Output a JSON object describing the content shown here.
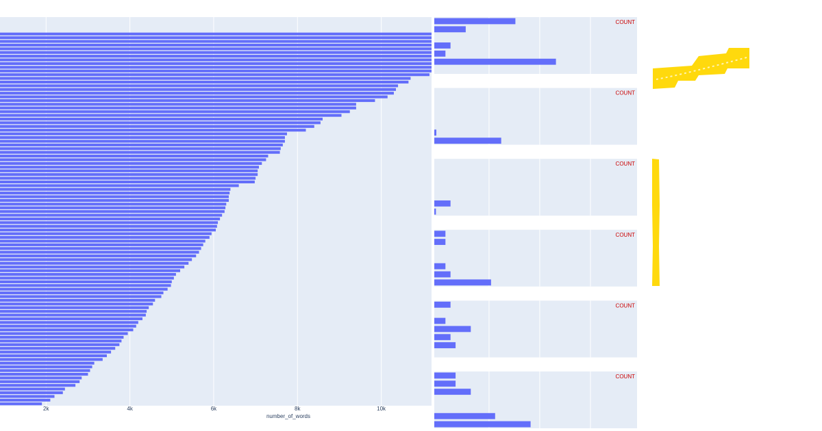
{
  "colors": {
    "plot_bg": "#e5ecf6",
    "bar": "#636efa",
    "grid": "#ffffff",
    "count_label": "#cc0000",
    "highlighter": "#ffd700"
  },
  "chart_data": [
    {
      "type": "bar",
      "orientation": "horizontal",
      "xlabel": "number_of_words",
      "xlim": [
        900,
        11200
      ],
      "xticks": [
        2000,
        4000,
        6000,
        8000,
        10000
      ],
      "xtick_labels": [
        "2k",
        "4k",
        "6k",
        "8k",
        "10k"
      ],
      "values": [
        11200,
        11200,
        11200,
        11200,
        11200,
        11200,
        11200,
        11200,
        11200,
        11200,
        11200,
        11150,
        10700,
        10650,
        10400,
        10350,
        10300,
        10150,
        9850,
        9400,
        9400,
        9250,
        9050,
        8600,
        8550,
        8400,
        8200,
        7750,
        7700,
        7700,
        7650,
        7600,
        7580,
        7300,
        7250,
        7150,
        7080,
        7050,
        7050,
        7000,
        6980,
        6600,
        6400,
        6380,
        6360,
        6360,
        6300,
        6280,
        6260,
        6200,
        6150,
        6100,
        6080,
        6050,
        5950,
        5900,
        5800,
        5750,
        5700,
        5650,
        5580,
        5480,
        5400,
        5300,
        5200,
        5100,
        5050,
        5000,
        4980,
        4900,
        4800,
        4750,
        4600,
        4550,
        4450,
        4400,
        4380,
        4300,
        4200,
        4150,
        4080,
        3950,
        3850,
        3800,
        3750,
        3650,
        3550,
        3450,
        3350,
        3150,
        3100,
        3050,
        3000,
        2850,
        2800,
        2700,
        2450,
        2400,
        2200,
        2100,
        1900
      ]
    },
    {
      "type": "bar",
      "orientation": "horizontal",
      "label": "COUNT",
      "xlim": [
        0,
        1
      ],
      "slots": 7,
      "bars": [
        {
          "slot": 0,
          "value": 0.4
        },
        {
          "slot": 1,
          "value": 0.155
        },
        {
          "slot": 3,
          "value": 0.08
        },
        {
          "slot": 4,
          "value": 0.055
        },
        {
          "slot": 5,
          "value": 0.6
        }
      ]
    },
    {
      "type": "bar",
      "orientation": "horizontal",
      "label": "COUNT",
      "xlim": [
        0,
        1
      ],
      "slots": 7,
      "bars": [
        {
          "slot": 5,
          "value": 0.01
        },
        {
          "slot": 6,
          "value": 0.33
        }
      ]
    },
    {
      "type": "bar",
      "orientation": "horizontal",
      "label": "COUNT",
      "xlim": [
        0,
        1
      ],
      "slots": 7,
      "bars": [
        {
          "slot": 5,
          "value": 0.08
        },
        {
          "slot": 6,
          "value": 0.008
        }
      ]
    },
    {
      "type": "bar",
      "orientation": "horizontal",
      "label": "COUNT",
      "xlim": [
        0,
        1
      ],
      "slots": 7,
      "bars": [
        {
          "slot": 0,
          "value": 0.055
        },
        {
          "slot": 1,
          "value": 0.055
        },
        {
          "slot": 4,
          "value": 0.055
        },
        {
          "slot": 5,
          "value": 0.08
        },
        {
          "slot": 6,
          "value": 0.28
        }
      ]
    },
    {
      "type": "bar",
      "orientation": "horizontal",
      "label": "COUNT",
      "xlim": [
        0,
        1
      ],
      "slots": 7,
      "bars": [
        {
          "slot": 0,
          "value": 0.08
        },
        {
          "slot": 2,
          "value": 0.055
        },
        {
          "slot": 3,
          "value": 0.18
        },
        {
          "slot": 4,
          "value": 0.08
        },
        {
          "slot": 5,
          "value": 0.105
        }
      ]
    },
    {
      "type": "bar",
      "orientation": "horizontal",
      "label": "COUNT",
      "xlim": [
        0,
        1
      ],
      "slots": 7,
      "bars": [
        {
          "slot": 0,
          "value": 0.105
        },
        {
          "slot": 1,
          "value": 0.105
        },
        {
          "slot": 2,
          "value": 0.18
        },
        {
          "slot": 5,
          "value": 0.3
        },
        {
          "slot": 6,
          "value": 0.475
        }
      ]
    }
  ]
}
